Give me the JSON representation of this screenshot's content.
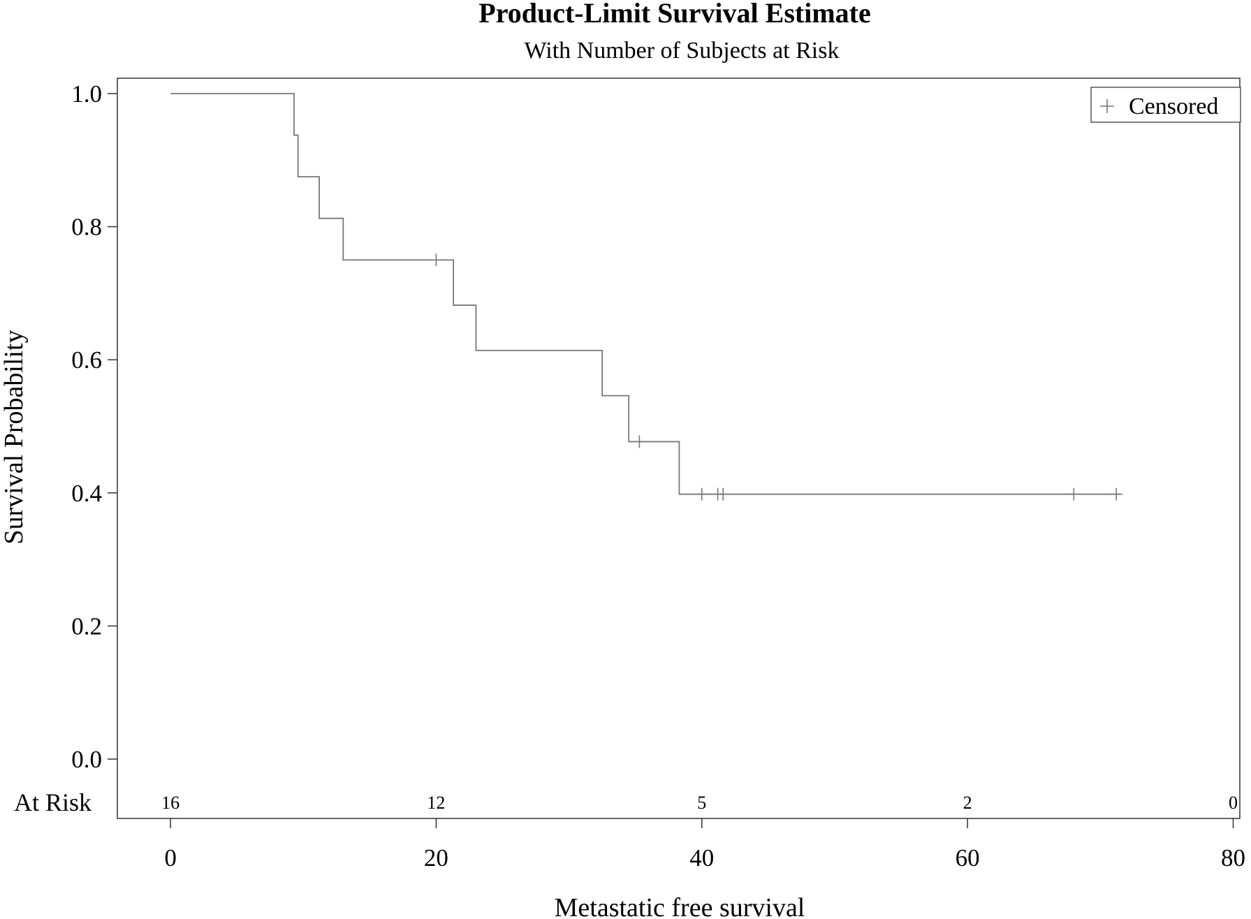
{
  "chart_data": {
    "type": "line",
    "title": "Product-Limit Survival Estimate",
    "subtitle": "With Number of Subjects at Risk",
    "xlabel": "Metastatic free survival",
    "ylabel": "Survival Probability",
    "xlim": [
      -4,
      80.5
    ],
    "ylim": [
      0,
      1.0
    ],
    "x_ticks": [
      0,
      20,
      40,
      60,
      80
    ],
    "x_tick_labels": [
      "0",
      "20",
      "40",
      "60",
      "80"
    ],
    "y_ticks": [
      0.0,
      0.2,
      0.4,
      0.6,
      0.8,
      1.0
    ],
    "y_tick_labels": [
      "0.0",
      "0.2",
      "0.4",
      "0.6",
      "0.8",
      "1.0"
    ],
    "grid": false,
    "legend": {
      "position": "top-right",
      "entries": [
        {
          "symbol": "+",
          "label": "Censored"
        }
      ]
    },
    "series": [
      {
        "steps": [
          {
            "x": 0,
            "y": 1.0
          },
          {
            "x": 9.3,
            "y": 0.9375
          },
          {
            "x": 9.6,
            "y": 0.875
          },
          {
            "x": 11.2,
            "y": 0.8125
          },
          {
            "x": 13.0,
            "y": 0.75
          },
          {
            "x": 21.3,
            "y": 0.682
          },
          {
            "x": 23.0,
            "y": 0.614
          },
          {
            "x": 32.5,
            "y": 0.546
          },
          {
            "x": 34.5,
            "y": 0.477
          },
          {
            "x": 38.3,
            "y": 0.398
          }
        ],
        "end_x": 71.5,
        "censored": [
          {
            "x": 20.0,
            "y": 0.75
          },
          {
            "x": 35.3,
            "y": 0.477
          },
          {
            "x": 40.0,
            "y": 0.398
          },
          {
            "x": 41.2,
            "y": 0.398
          },
          {
            "x": 41.6,
            "y": 0.398
          },
          {
            "x": 68.0,
            "y": 0.398
          },
          {
            "x": 71.2,
            "y": 0.398
          }
        ]
      }
    ],
    "at_risk": {
      "label": "At Risk",
      "times": [
        0,
        20,
        40,
        60,
        80
      ],
      "counts": [
        "16",
        "12",
        "5",
        "2",
        "0"
      ]
    }
  }
}
